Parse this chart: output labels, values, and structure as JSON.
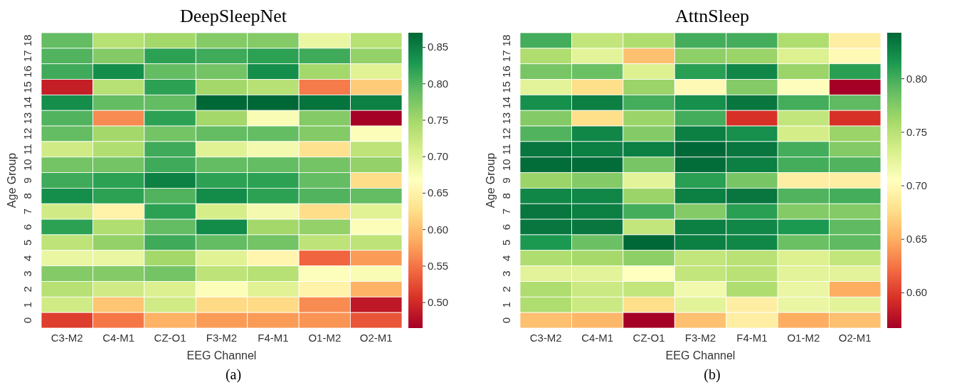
{
  "chart_data": [
    {
      "type": "heatmap",
      "title": "DeepSleepNet",
      "xlabel": "EEG Channel",
      "ylabel": "Age Group",
      "annotations": [
        "(a)"
      ],
      "categories": [
        "C3-M2",
        "C4-M1",
        "CZ-O1",
        "F3-M2",
        "F4-M1",
        "O1-M2",
        "O2-M1"
      ],
      "y_categories": [
        "18",
        "17",
        "16",
        "15",
        "14",
        "13",
        "12",
        "11",
        "10",
        "9",
        "8",
        "7",
        "6",
        "5",
        "4",
        "3",
        "2",
        "1",
        "0"
      ],
      "cells": [
        [
          0.79,
          0.735,
          0.75,
          0.77,
          0.77,
          0.69,
          0.735
        ],
        [
          0.8,
          0.77,
          0.82,
          0.81,
          0.82,
          0.81,
          0.76
        ],
        [
          0.81,
          0.838,
          0.79,
          0.78,
          0.838,
          0.75,
          0.7
        ],
        [
          0.49,
          0.735,
          0.82,
          0.75,
          0.735,
          0.555,
          0.61
        ],
        [
          0.838,
          0.79,
          0.79,
          0.87,
          0.87,
          0.86,
          0.85
        ],
        [
          0.8,
          0.565,
          0.82,
          0.75,
          0.675,
          0.77,
          0.465
        ],
        [
          0.79,
          0.75,
          0.78,
          0.79,
          0.79,
          0.77,
          0.672
        ],
        [
          0.715,
          0.74,
          0.81,
          0.7,
          0.68,
          0.63,
          0.73
        ],
        [
          0.78,
          0.78,
          0.81,
          0.79,
          0.79,
          0.78,
          0.76
        ],
        [
          0.81,
          0.82,
          0.85,
          0.82,
          0.82,
          0.79,
          0.625
        ],
        [
          0.838,
          0.82,
          0.8,
          0.84,
          0.82,
          0.8,
          0.79
        ],
        [
          0.715,
          0.65,
          0.82,
          0.71,
          0.68,
          0.625,
          0.7
        ],
        [
          0.82,
          0.74,
          0.79,
          0.84,
          0.75,
          0.76,
          0.672
        ],
        [
          0.73,
          0.76,
          0.81,
          0.79,
          0.78,
          0.73,
          0.73
        ],
        [
          0.69,
          0.69,
          0.75,
          0.7,
          0.655,
          0.54,
          0.575
        ],
        [
          0.77,
          0.77,
          0.78,
          0.73,
          0.735,
          0.67,
          0.675
        ],
        [
          0.735,
          0.715,
          0.705,
          0.672,
          0.7,
          0.65,
          0.59
        ],
        [
          0.715,
          0.605,
          0.715,
          0.622,
          0.622,
          0.565,
          0.485
        ],
        [
          0.515,
          0.552,
          0.59,
          0.575,
          0.575,
          0.57,
          0.53
        ]
      ],
      "clim": [
        0.465,
        0.87
      ],
      "cticks": [
        {
          "value": 0.5,
          "label": "0.50"
        },
        0.55,
        {
          "value": 0.6,
          "label": "0.60"
        },
        0.65,
        {
          "value": 0.7,
          "label": "0.70"
        },
        0.75,
        {
          "value": 0.8,
          "label": "0.80"
        },
        0.85
      ]
    },
    {
      "type": "heatmap",
      "title": "AttnSleep",
      "xlabel": "EEG Channel",
      "ylabel": "Age Group",
      "annotations": [
        "(b)"
      ],
      "categories": [
        "C3-M2",
        "C4-M1",
        "CZ-O1",
        "F3-M2",
        "F4-M1",
        "O1-M2",
        "O2-M1"
      ],
      "y_categories": [
        "18",
        "17",
        "16",
        "15",
        "14",
        "13",
        "12",
        "11",
        "10",
        "9",
        "8",
        "7",
        "6",
        "5",
        "4",
        "3",
        "2",
        "1",
        "0"
      ],
      "cells": [
        [
          0.8,
          0.745,
          0.755,
          0.8,
          0.8,
          0.755,
          0.69
        ],
        [
          0.755,
          0.725,
          0.66,
          0.77,
          0.765,
          0.73,
          0.7
        ],
        [
          0.78,
          0.785,
          0.73,
          0.81,
          0.825,
          0.765,
          0.81
        ],
        [
          0.725,
          0.677,
          0.765,
          0.7,
          0.775,
          0.703,
          0.567
        ],
        [
          0.82,
          0.83,
          0.8,
          0.82,
          0.835,
          0.8,
          0.79
        ],
        [
          0.775,
          0.677,
          0.765,
          0.8,
          0.595,
          0.745,
          0.595
        ],
        [
          0.795,
          0.825,
          0.775,
          0.83,
          0.82,
          0.735,
          0.765
        ],
        [
          0.835,
          0.83,
          0.83,
          0.843,
          0.835,
          0.8,
          0.775
        ],
        [
          0.84,
          0.84,
          0.78,
          0.84,
          0.83,
          0.8,
          0.795
        ],
        [
          0.765,
          0.775,
          0.725,
          0.81,
          0.78,
          0.69,
          0.69
        ],
        [
          0.825,
          0.825,
          0.765,
          0.83,
          0.835,
          0.795,
          0.8
        ],
        [
          0.835,
          0.83,
          0.8,
          0.775,
          0.81,
          0.775,
          0.775
        ],
        [
          0.835,
          0.835,
          0.745,
          0.83,
          0.825,
          0.815,
          0.79
        ],
        [
          0.815,
          0.785,
          0.843,
          0.83,
          0.825,
          0.785,
          0.79
        ],
        [
          0.755,
          0.76,
          0.77,
          0.745,
          0.75,
          0.73,
          0.745
        ],
        [
          0.725,
          0.725,
          0.705,
          0.745,
          0.75,
          0.725,
          0.725
        ],
        [
          0.755,
          0.74,
          0.745,
          0.715,
          0.755,
          0.72,
          0.65
        ],
        [
          0.755,
          0.74,
          0.677,
          0.725,
          0.69,
          0.72,
          0.725
        ],
        [
          0.66,
          0.655,
          0.567,
          0.66,
          0.69,
          0.65,
          0.66
        ]
      ],
      "clim": [
        0.567,
        0.843
      ],
      "cticks": [
        {
          "value": 0.6,
          "label": "0.60"
        },
        0.65,
        {
          "value": 0.7,
          "label": "0.70"
        },
        0.75,
        {
          "value": 0.8,
          "label": "0.80"
        }
      ]
    }
  ]
}
